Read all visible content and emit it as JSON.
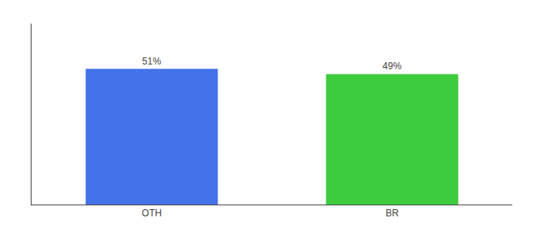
{
  "chart_data": {
    "type": "bar",
    "categories": [
      "OTH",
      "BR"
    ],
    "values": [
      51,
      49
    ],
    "value_labels": [
      "51%",
      "49%"
    ],
    "colors": [
      "#4472e8",
      "#3dcc3d"
    ],
    "ylim": [
      0,
      68
    ],
    "data_labels": true,
    "tick_labels": "x",
    "grid": false
  }
}
